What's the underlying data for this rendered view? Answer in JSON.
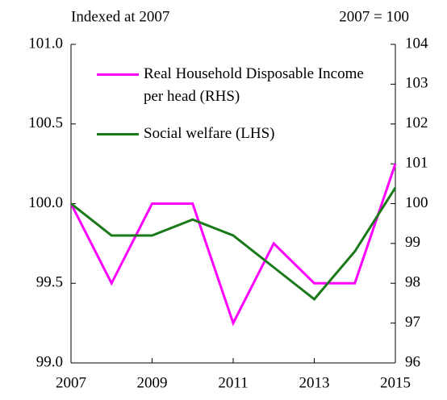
{
  "chart_data": {
    "type": "line",
    "annotations": [
      "Indexed at 2007",
      "2007 = 100"
    ],
    "x": [
      2007,
      2008,
      2009,
      2010,
      2011,
      2012,
      2013,
      2014,
      2015
    ],
    "series": [
      {
        "name": "Real Household Disposable Income per head (RHS)",
        "color": "#ff00ff",
        "axis": "y2",
        "values": [
          100,
          98,
          100,
          100,
          97,
          99,
          98,
          98,
          101
        ]
      },
      {
        "name": "Social welfare (LHS)",
        "color": "#1a7a1a",
        "values": [
          100.0,
          99.8,
          99.8,
          99.9,
          99.8,
          99.6,
          99.4,
          99.7,
          100.1
        ]
      }
    ],
    "xlim": [
      2007,
      2015
    ],
    "xticks": [
      2007,
      2009,
      2011,
      2013,
      2015
    ],
    "ylim": [
      99.0,
      101.0
    ],
    "yticks": [
      {
        "value": 99.0,
        "label": "99.0"
      },
      99.5,
      {
        "value": 100.0,
        "label": "100.0"
      },
      100.5,
      {
        "value": 101.0,
        "label": "101.0"
      }
    ],
    "y2lim": [
      96,
      104
    ],
    "y2ticks": [
      96,
      97,
      98,
      99,
      100,
      101,
      102,
      103,
      104
    ]
  }
}
